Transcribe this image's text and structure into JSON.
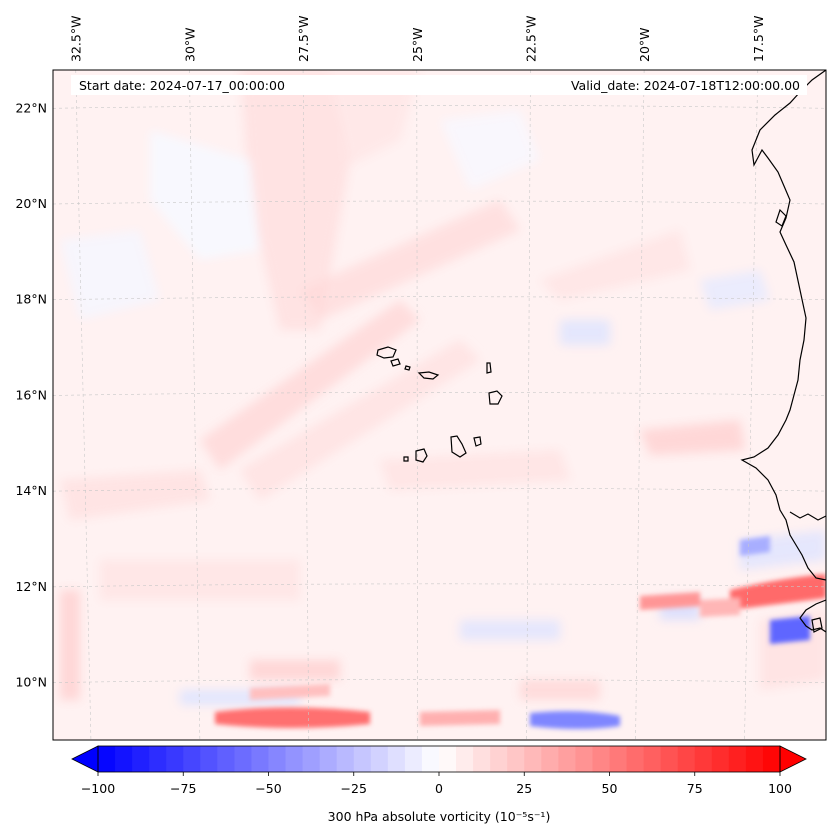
{
  "header": {
    "start_date": "Start date: 2024-07-17_00:00:00",
    "valid_date": "Valid_date: 2024-07-18T12:00:00.00"
  },
  "map": {
    "lon_range": [
      -33.0,
      -16.0
    ],
    "lat_range": [
      8.8,
      22.8
    ],
    "lon_ticks": [
      {
        "value": -32.5,
        "label": "32.5°W"
      },
      {
        "value": -30.0,
        "label": "30°W"
      },
      {
        "value": -27.5,
        "label": "27.5°W"
      },
      {
        "value": -25.0,
        "label": "25°W"
      },
      {
        "value": -22.5,
        "label": "22.5°W"
      },
      {
        "value": -20.0,
        "label": "20°W"
      },
      {
        "value": -17.5,
        "label": "17.5°W"
      }
    ],
    "lat_ticks": [
      {
        "value": 10,
        "label": "10°N"
      },
      {
        "value": 12,
        "label": "12°N"
      },
      {
        "value": 14,
        "label": "14°N"
      },
      {
        "value": 16,
        "label": "16°N"
      },
      {
        "value": 18,
        "label": "18°N"
      },
      {
        "value": 20,
        "label": "20°N"
      },
      {
        "value": 22,
        "label": "22°N"
      }
    ],
    "gridlines": true,
    "coastline_color": "#000000"
  },
  "colorbar": {
    "label": "300 hPa absolute vorticity (10⁻⁵s⁻¹)",
    "min": -100,
    "max": 100,
    "ticks": [
      {
        "value": -100,
        "label": "−100"
      },
      {
        "value": -75,
        "label": "−75"
      },
      {
        "value": -50,
        "label": "−50"
      },
      {
        "value": -25,
        "label": "−25"
      },
      {
        "value": 0,
        "label": "0"
      },
      {
        "value": 25,
        "label": "25"
      },
      {
        "value": 50,
        "label": "50"
      },
      {
        "value": 75,
        "label": "75"
      },
      {
        "value": 100,
        "label": "100"
      }
    ],
    "colormap": "bwr",
    "low_color": "#0000ff",
    "mid_color": "#ffffff",
    "high_color": "#ff0000"
  }
}
